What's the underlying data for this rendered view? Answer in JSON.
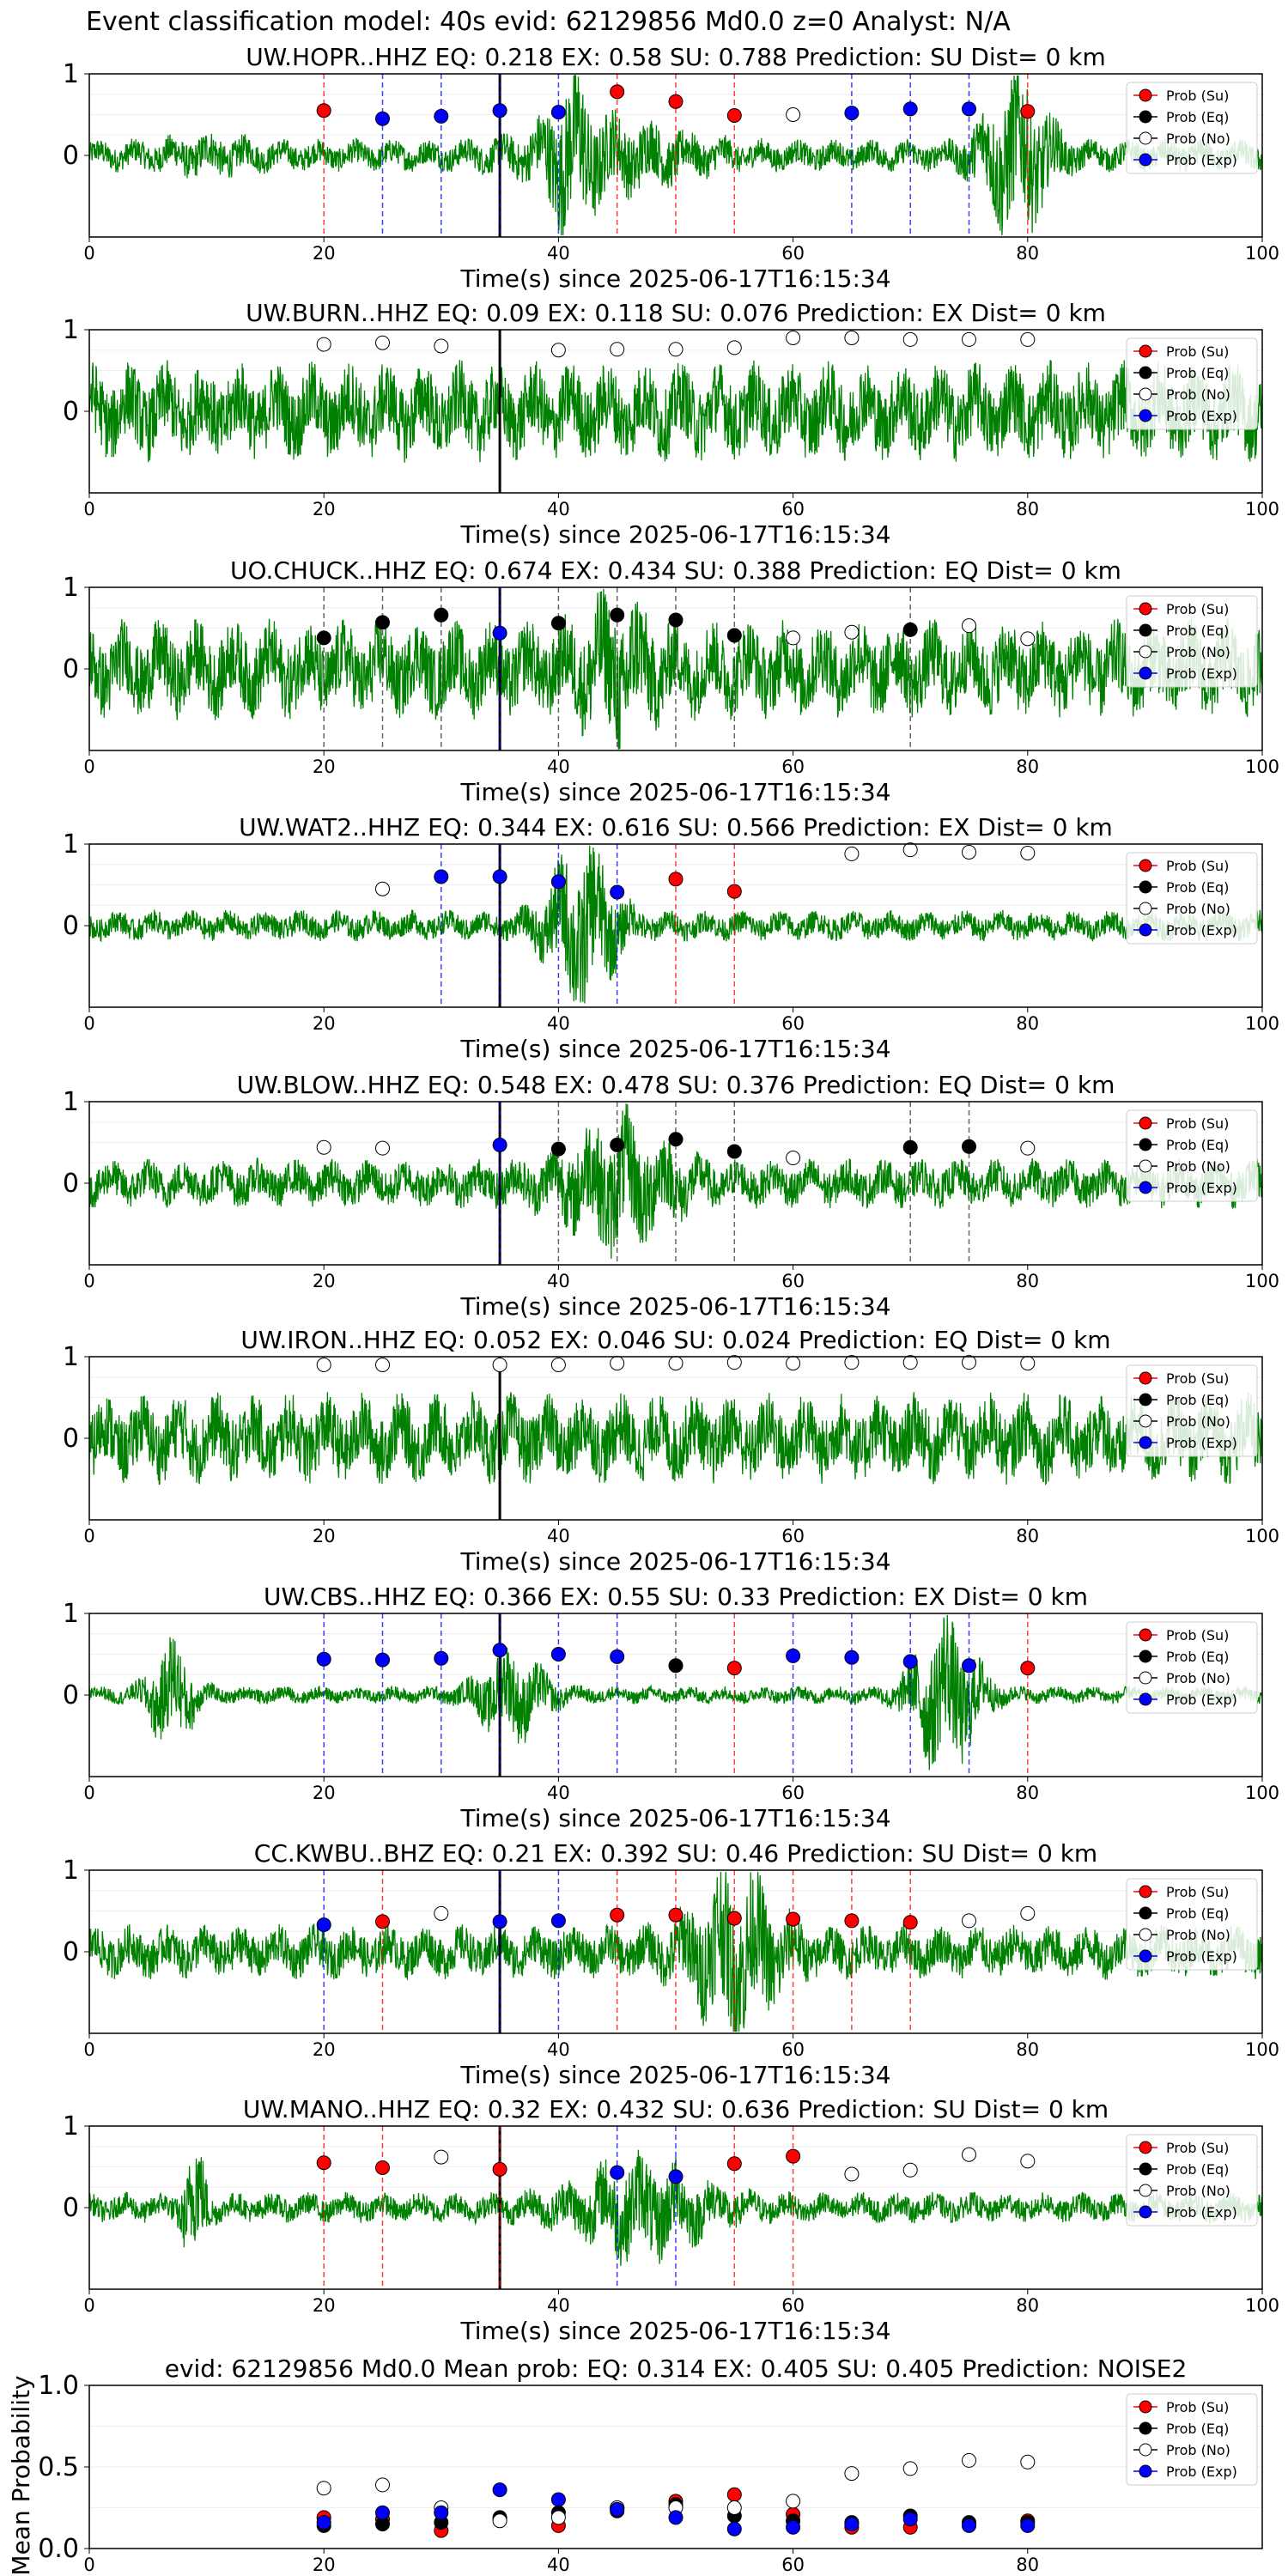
{
  "figure_title": "Event classification model: 40s evid: 62129856 Md0.0 z=0 Analyst: N/A",
  "legend": [
    "Prob (Su)",
    "Prob (Eq)",
    "Prob (No)",
    "Prob (Exp)"
  ],
  "colors": {
    "trace": "#008000",
    "su": "#ff0000",
    "eq": "#000000",
    "no": "#ffffff",
    "exp": "#0000ff",
    "su_line": "#ff0000",
    "eq_line": "#333333",
    "exp_line": "#0000ff",
    "origin_line": "#000000"
  },
  "chart_data": [
    {
      "type": "line",
      "station": "UW.HOPR..HHZ",
      "title": "UW.HOPR..HHZ   EQ: 0.218  EX: 0.58  SU: 0.788   Prediction: SU    Dist= 0 km",
      "xlabel": "Time(s) since 2025-06-17T16:15:34",
      "xlim": [
        0,
        100
      ],
      "ylim": [
        -1,
        1
      ],
      "xticks": [
        0,
        20,
        40,
        60,
        80,
        100
      ],
      "yticks": [
        "1",
        "0"
      ],
      "origin_time": 35,
      "grid": true,
      "legend_position": "upper right",
      "noise_level": 0.18,
      "bursts": [
        [
          10,
          0.1,
          4
        ],
        [
          41,
          0.6,
          2
        ],
        [
          44,
          0.35,
          7
        ],
        [
          79,
          0.9,
          3
        ]
      ],
      "points": [
        {
          "x": 20,
          "y": 0.55,
          "class": "Su"
        },
        {
          "x": 25,
          "y": 0.45,
          "class": "Exp"
        },
        {
          "x": 30,
          "y": 0.48,
          "class": "Exp"
        },
        {
          "x": 35,
          "y": 0.55,
          "class": "Exp"
        },
        {
          "x": 40,
          "y": 0.53,
          "class": "Exp"
        },
        {
          "x": 45,
          "y": 0.78,
          "class": "Su"
        },
        {
          "x": 50,
          "y": 0.66,
          "class": "Su"
        },
        {
          "x": 55,
          "y": 0.49,
          "class": "Su"
        },
        {
          "x": 60,
          "y": 0.5,
          "class": "No"
        },
        {
          "x": 65,
          "y": 0.52,
          "class": "Exp"
        },
        {
          "x": 70,
          "y": 0.57,
          "class": "Exp"
        },
        {
          "x": 75,
          "y": 0.57,
          "class": "Exp"
        },
        {
          "x": 80,
          "y": 0.54,
          "class": "Su"
        }
      ]
    },
    {
      "type": "line",
      "station": "UW.BURN..HHZ",
      "title": "UW.BURN..HHZ   EQ: 0.09  EX: 0.118  SU: 0.076   Prediction: EX    Dist= 0 km",
      "xlabel": "Time(s) since 2025-06-17T16:15:34",
      "xlim": [
        0,
        100
      ],
      "ylim": [
        -1,
        1
      ],
      "xticks": [
        0,
        20,
        40,
        60,
        80,
        100
      ],
      "yticks": [
        "1",
        "0"
      ],
      "origin_time": 35,
      "grid": true,
      "legend_position": "upper right",
      "noise_level": 0.55,
      "bursts": [],
      "points": [
        {
          "x": 20,
          "y": 0.82,
          "class": "No"
        },
        {
          "x": 25,
          "y": 0.84,
          "class": "No"
        },
        {
          "x": 30,
          "y": 0.8,
          "class": "No"
        },
        {
          "x": 40,
          "y": 0.75,
          "class": "No"
        },
        {
          "x": 45,
          "y": 0.76,
          "class": "No"
        },
        {
          "x": 50,
          "y": 0.76,
          "class": "No"
        },
        {
          "x": 55,
          "y": 0.78,
          "class": "No"
        },
        {
          "x": 60,
          "y": 0.9,
          "class": "No"
        },
        {
          "x": 65,
          "y": 0.9,
          "class": "No"
        },
        {
          "x": 70,
          "y": 0.88,
          "class": "No"
        },
        {
          "x": 75,
          "y": 0.88,
          "class": "No"
        },
        {
          "x": 80,
          "y": 0.88,
          "class": "No"
        }
      ]
    },
    {
      "type": "line",
      "station": "UO.CHUCK..HHZ",
      "title": "UO.CHUCK..HHZ   EQ: 0.674  EX: 0.434  SU: 0.388   Prediction: EQ    Dist= 0 km",
      "xlabel": "Time(s) since 2025-06-17T16:15:34",
      "xlim": [
        0,
        100
      ],
      "ylim": [
        -1,
        1
      ],
      "xticks": [
        0,
        20,
        40,
        60,
        80,
        100
      ],
      "yticks": [
        "1",
        "0"
      ],
      "origin_time": 35,
      "grid": true,
      "legend_position": "upper right",
      "noise_level": 0.55,
      "bursts": [
        [
          45,
          0.45,
          3
        ]
      ],
      "points": [
        {
          "x": 20,
          "y": 0.38,
          "class": "Eq"
        },
        {
          "x": 25,
          "y": 0.57,
          "class": "Eq"
        },
        {
          "x": 30,
          "y": 0.66,
          "class": "Eq"
        },
        {
          "x": 35,
          "y": 0.44,
          "class": "Exp"
        },
        {
          "x": 40,
          "y": 0.56,
          "class": "Eq"
        },
        {
          "x": 45,
          "y": 0.66,
          "class": "Eq"
        },
        {
          "x": 50,
          "y": 0.6,
          "class": "Eq"
        },
        {
          "x": 55,
          "y": 0.41,
          "class": "Eq"
        },
        {
          "x": 60,
          "y": 0.38,
          "class": "No"
        },
        {
          "x": 65,
          "y": 0.45,
          "class": "No"
        },
        {
          "x": 70,
          "y": 0.48,
          "class": "Eq"
        },
        {
          "x": 75,
          "y": 0.53,
          "class": "No"
        },
        {
          "x": 80,
          "y": 0.37,
          "class": "No"
        }
      ]
    },
    {
      "type": "line",
      "station": "UW.WAT2..HHZ",
      "title": "UW.WAT2..HHZ   EQ: 0.344  EX: 0.616  SU: 0.566   Prediction: EX    Dist= 0 km",
      "xlabel": "Time(s) since 2025-06-17T16:15:34",
      "xlim": [
        0,
        100
      ],
      "ylim": [
        -1,
        1
      ],
      "xticks": [
        0,
        20,
        40,
        60,
        80,
        100
      ],
      "yticks": [
        "1",
        "0"
      ],
      "origin_time": 35,
      "grid": true,
      "legend_position": "upper right",
      "noise_level": 0.17,
      "bursts": [
        [
          42,
          0.9,
          3
        ]
      ],
      "points": [
        {
          "x": 25,
          "y": 0.45,
          "class": "No"
        },
        {
          "x": 30,
          "y": 0.6,
          "class": "Exp"
        },
        {
          "x": 35,
          "y": 0.6,
          "class": "Exp"
        },
        {
          "x": 40,
          "y": 0.54,
          "class": "Exp"
        },
        {
          "x": 45,
          "y": 0.41,
          "class": "Exp"
        },
        {
          "x": 50,
          "y": 0.57,
          "class": "Su"
        },
        {
          "x": 55,
          "y": 0.42,
          "class": "Su"
        },
        {
          "x": 65,
          "y": 0.88,
          "class": "No"
        },
        {
          "x": 70,
          "y": 0.93,
          "class": "No"
        },
        {
          "x": 75,
          "y": 0.9,
          "class": "No"
        },
        {
          "x": 80,
          "y": 0.89,
          "class": "No"
        }
      ]
    },
    {
      "type": "line",
      "station": "UW.BLOW..HHZ",
      "title": "UW.BLOW..HHZ   EQ: 0.548  EX: 0.478  SU: 0.376   Prediction: EQ    Dist= 0 km",
      "xlabel": "Time(s) since 2025-06-17T16:15:34",
      "xlim": [
        0,
        100
      ],
      "ylim": [
        -1,
        1
      ],
      "xticks": [
        0,
        20,
        40,
        60,
        80,
        100
      ],
      "yticks": [
        "1",
        "0"
      ],
      "origin_time": 35,
      "grid": true,
      "legend_position": "upper right",
      "noise_level": 0.27,
      "bursts": [
        [
          45,
          0.6,
          5
        ]
      ],
      "points": [
        {
          "x": 20,
          "y": 0.44,
          "class": "No"
        },
        {
          "x": 25,
          "y": 0.43,
          "class": "No"
        },
        {
          "x": 35,
          "y": 0.47,
          "class": "Exp"
        },
        {
          "x": 40,
          "y": 0.42,
          "class": "Eq"
        },
        {
          "x": 45,
          "y": 0.47,
          "class": "Eq"
        },
        {
          "x": 50,
          "y": 0.54,
          "class": "Eq"
        },
        {
          "x": 55,
          "y": 0.39,
          "class": "Eq"
        },
        {
          "x": 60,
          "y": 0.31,
          "class": "No"
        },
        {
          "x": 70,
          "y": 0.44,
          "class": "Eq"
        },
        {
          "x": 75,
          "y": 0.45,
          "class": "Eq"
        },
        {
          "x": 80,
          "y": 0.43,
          "class": "No"
        }
      ]
    },
    {
      "type": "line",
      "station": "UW.IRON..HHZ",
      "title": "UW.IRON..HHZ   EQ: 0.052  EX: 0.046  SU: 0.024   Prediction: EQ    Dist= 0 km",
      "xlabel": "Time(s) since 2025-06-17T16:15:34",
      "xlim": [
        0,
        100
      ],
      "ylim": [
        -1,
        1
      ],
      "xticks": [
        0,
        20,
        40,
        60,
        80,
        100
      ],
      "yticks": [
        "1",
        "0"
      ],
      "origin_time": 35,
      "grid": true,
      "legend_position": "upper right",
      "noise_level": 0.5,
      "bursts": [],
      "points": [
        {
          "x": 20,
          "y": 0.9,
          "class": "No"
        },
        {
          "x": 25,
          "y": 0.9,
          "class": "No"
        },
        {
          "x": 35,
          "y": 0.9,
          "class": "No"
        },
        {
          "x": 40,
          "y": 0.9,
          "class": "No"
        },
        {
          "x": 45,
          "y": 0.92,
          "class": "No"
        },
        {
          "x": 50,
          "y": 0.92,
          "class": "No"
        },
        {
          "x": 55,
          "y": 0.93,
          "class": "No"
        },
        {
          "x": 60,
          "y": 0.92,
          "class": "No"
        },
        {
          "x": 65,
          "y": 0.93,
          "class": "No"
        },
        {
          "x": 70,
          "y": 0.93,
          "class": "No"
        },
        {
          "x": 75,
          "y": 0.93,
          "class": "No"
        },
        {
          "x": 80,
          "y": 0.92,
          "class": "No"
        }
      ]
    },
    {
      "type": "line",
      "station": "UW.CBS..HHZ",
      "title": "UW.CBS..HHZ   EQ: 0.366  EX: 0.55  SU: 0.33   Prediction: EX    Dist= 0 km",
      "xlabel": "Time(s) since 2025-06-17T16:15:34",
      "xlim": [
        0,
        100
      ],
      "ylim": [
        -1,
        1
      ],
      "xticks": [
        0,
        20,
        40,
        60,
        80,
        100
      ],
      "yticks": [
        "1",
        "0"
      ],
      "origin_time": 35,
      "grid": true,
      "legend_position": "upper right",
      "noise_level": 0.1,
      "bursts": [
        [
          7,
          0.6,
          2
        ],
        [
          36,
          0.5,
          3
        ],
        [
          73,
          0.9,
          3
        ]
      ],
      "points": [
        {
          "x": 20,
          "y": 0.44,
          "class": "Exp"
        },
        {
          "x": 25,
          "y": 0.43,
          "class": "Exp"
        },
        {
          "x": 30,
          "y": 0.45,
          "class": "Exp"
        },
        {
          "x": 35,
          "y": 0.55,
          "class": "Exp"
        },
        {
          "x": 40,
          "y": 0.5,
          "class": "Exp"
        },
        {
          "x": 45,
          "y": 0.47,
          "class": "Exp"
        },
        {
          "x": 50,
          "y": 0.36,
          "class": "Eq"
        },
        {
          "x": 55,
          "y": 0.33,
          "class": "Su"
        },
        {
          "x": 60,
          "y": 0.48,
          "class": "Exp"
        },
        {
          "x": 65,
          "y": 0.46,
          "class": "Exp"
        },
        {
          "x": 70,
          "y": 0.41,
          "class": "Exp"
        },
        {
          "x": 75,
          "y": 0.36,
          "class": "Exp"
        },
        {
          "x": 80,
          "y": 0.33,
          "class": "Su"
        }
      ]
    },
    {
      "type": "line",
      "station": "CC.KWBU..BHZ",
      "title": "CC.KWBU..BHZ   EQ: 0.21  EX: 0.392  SU: 0.46   Prediction: SU    Dist= 0 km",
      "xlabel": "Time(s) since 2025-06-17T16:15:34",
      "xlim": [
        0,
        100
      ],
      "ylim": [
        -1,
        1
      ],
      "xticks": [
        0,
        20,
        40,
        60,
        80,
        100
      ],
      "yticks": [
        "1",
        "0"
      ],
      "origin_time": 35,
      "grid": true,
      "legend_position": "upper right",
      "noise_level": 0.3,
      "bursts": [
        [
          55,
          0.8,
          4
        ]
      ],
      "points": [
        {
          "x": 20,
          "y": 0.33,
          "class": "Exp"
        },
        {
          "x": 25,
          "y": 0.37,
          "class": "Su"
        },
        {
          "x": 30,
          "y": 0.47,
          "class": "No"
        },
        {
          "x": 35,
          "y": 0.37,
          "class": "Exp"
        },
        {
          "x": 40,
          "y": 0.38,
          "class": "Exp"
        },
        {
          "x": 45,
          "y": 0.45,
          "class": "Su"
        },
        {
          "x": 50,
          "y": 0.45,
          "class": "Su"
        },
        {
          "x": 55,
          "y": 0.41,
          "class": "Su"
        },
        {
          "x": 60,
          "y": 0.4,
          "class": "Su"
        },
        {
          "x": 65,
          "y": 0.38,
          "class": "Su"
        },
        {
          "x": 70,
          "y": 0.36,
          "class": "Su"
        },
        {
          "x": 75,
          "y": 0.38,
          "class": "No"
        },
        {
          "x": 80,
          "y": 0.47,
          "class": "No"
        }
      ]
    },
    {
      "type": "line",
      "station": "UW.MANO..HHZ",
      "title": "UW.MANO..HHZ   EQ: 0.32  EX: 0.432  SU: 0.636   Prediction: SU    Dist= 0 km",
      "xlabel": "Time(s) since 2025-06-17T16:15:34",
      "xlim": [
        0,
        100
      ],
      "ylim": [
        -1,
        1
      ],
      "xticks": [
        0,
        20,
        40,
        60,
        80,
        100
      ],
      "yticks": [
        "1",
        "0"
      ],
      "origin_time": 35,
      "grid": true,
      "legend_position": "upper right",
      "noise_level": 0.17,
      "bursts": [
        [
          9,
          0.7,
          1
        ],
        [
          47,
          0.5,
          6
        ]
      ],
      "points": [
        {
          "x": 20,
          "y": 0.55,
          "class": "Su"
        },
        {
          "x": 25,
          "y": 0.49,
          "class": "Su"
        },
        {
          "x": 30,
          "y": 0.62,
          "class": "No"
        },
        {
          "x": 35,
          "y": 0.47,
          "class": "Su"
        },
        {
          "x": 45,
          "y": 0.43,
          "class": "Exp"
        },
        {
          "x": 50,
          "y": 0.38,
          "class": "Exp"
        },
        {
          "x": 55,
          "y": 0.54,
          "class": "Su"
        },
        {
          "x": 60,
          "y": 0.63,
          "class": "Su"
        },
        {
          "x": 65,
          "y": 0.41,
          "class": "No"
        },
        {
          "x": 70,
          "y": 0.46,
          "class": "No"
        },
        {
          "x": 75,
          "y": 0.65,
          "class": "No"
        },
        {
          "x": 80,
          "y": 0.57,
          "class": "No"
        }
      ]
    },
    {
      "type": "scatter",
      "title": "evid: 62129856  Md0.0   Mean prob:    EQ: 0.314  EX: 0.405  SU: 0.405   Prediction: NOISE2",
      "ylabel": "Mean Probability",
      "xlim": [
        0,
        100
      ],
      "ylim": [
        0,
        1
      ],
      "xticks": [
        0,
        20,
        40,
        60,
        80
      ],
      "yticks": [
        "0.0",
        "0.5",
        "1.0"
      ],
      "grid": true,
      "legend_position": "upper right",
      "x": [
        20,
        25,
        30,
        35,
        40,
        45,
        50,
        55,
        60,
        65,
        70,
        75,
        80
      ],
      "series": [
        {
          "name": "Prob (Su)",
          "values": [
            0.19,
            0.18,
            0.11,
            0.18,
            0.14,
            0.25,
            0.29,
            0.33,
            0.21,
            0.13,
            0.13,
            0.15,
            0.17
          ]
        },
        {
          "name": "Prob (Eq)",
          "values": [
            0.14,
            0.15,
            0.16,
            0.19,
            0.22,
            0.23,
            0.27,
            0.2,
            0.17,
            0.16,
            0.2,
            0.16,
            0.16
          ]
        },
        {
          "name": "Prob (No)",
          "values": [
            0.37,
            0.39,
            0.25,
            0.17,
            0.19,
            0.25,
            0.25,
            0.25,
            0.29,
            0.46,
            0.49,
            0.54,
            0.53
          ]
        },
        {
          "name": "Prob (Exp)",
          "values": [
            0.16,
            0.22,
            0.22,
            0.36,
            0.3,
            0.24,
            0.19,
            0.12,
            0.13,
            0.15,
            0.18,
            0.14,
            0.14
          ]
        }
      ]
    }
  ]
}
